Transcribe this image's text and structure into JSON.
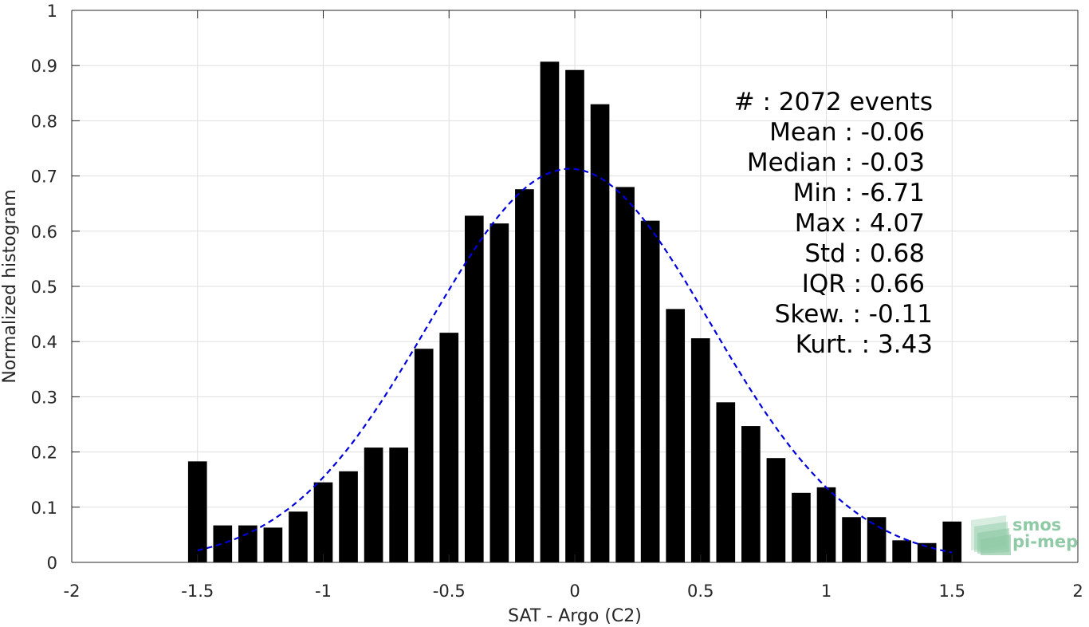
{
  "chart_data": {
    "type": "bar",
    "xlabel": "SAT - Argo (C2)",
    "ylabel": "Normalized histogram",
    "xlim": [
      -2,
      2
    ],
    "ylim": [
      0,
      1
    ],
    "grid": true,
    "x_ticks": [
      -2,
      -1.5,
      -1,
      -0.5,
      0,
      0.5,
      1,
      1.5,
      2
    ],
    "x_tick_labels": [
      "-2",
      "-1.5",
      "-1",
      "-0.5",
      "0",
      "0.5",
      "1",
      "1.5",
      "2"
    ],
    "y_ticks": [
      0,
      0.1,
      0.2,
      0.3,
      0.4,
      0.5,
      0.6,
      0.7,
      0.8,
      0.9,
      1
    ],
    "y_tick_labels": [
      "0",
      "0.1",
      "0.2",
      "0.3",
      "0.4",
      "0.5",
      "0.6",
      "0.7",
      "0.8",
      "0.9",
      "1"
    ],
    "bar_width": 0.075,
    "bar_color": "#000000",
    "bins": [
      {
        "x": -1.5,
        "y": 0.183
      },
      {
        "x": -1.4,
        "y": 0.067
      },
      {
        "x": -1.3,
        "y": 0.067
      },
      {
        "x": -1.2,
        "y": 0.063
      },
      {
        "x": -1.1,
        "y": 0.092
      },
      {
        "x": -1.0,
        "y": 0.145
      },
      {
        "x": -0.9,
        "y": 0.165
      },
      {
        "x": -0.8,
        "y": 0.208
      },
      {
        "x": -0.7,
        "y": 0.208
      },
      {
        "x": -0.6,
        "y": 0.387
      },
      {
        "x": -0.5,
        "y": 0.416
      },
      {
        "x": -0.4,
        "y": 0.628
      },
      {
        "x": -0.3,
        "y": 0.614
      },
      {
        "x": -0.2,
        "y": 0.676
      },
      {
        "x": -0.1,
        "y": 0.907
      },
      {
        "x": 0.0,
        "y": 0.892
      },
      {
        "x": 0.1,
        "y": 0.83
      },
      {
        "x": 0.2,
        "y": 0.68
      },
      {
        "x": 0.3,
        "y": 0.619
      },
      {
        "x": 0.4,
        "y": 0.459
      },
      {
        "x": 0.5,
        "y": 0.406
      },
      {
        "x": 0.6,
        "y": 0.29
      },
      {
        "x": 0.7,
        "y": 0.247
      },
      {
        "x": 0.8,
        "y": 0.189
      },
      {
        "x": 0.9,
        "y": 0.126
      },
      {
        "x": 1.0,
        "y": 0.136
      },
      {
        "x": 1.1,
        "y": 0.082
      },
      {
        "x": 1.2,
        "y": 0.082
      },
      {
        "x": 1.3,
        "y": 0.04
      },
      {
        "x": 1.4,
        "y": 0.035
      },
      {
        "x": 1.5,
        "y": 0.074
      }
    ],
    "fit_curve": {
      "style": "dashed",
      "color": "#0000dd",
      "mean": -0.02,
      "std": 0.56,
      "peak": 0.713,
      "x_range": [
        -1.5,
        1.5
      ]
    },
    "stats": [
      {
        "label": "#  : 2072 events"
      },
      {
        "label": "Mean : -0.06"
      },
      {
        "label": "Median : -0.03"
      },
      {
        "label": "Min : -6.71"
      },
      {
        "label": "Max : 4.07"
      },
      {
        "label": "Std : 0.68"
      },
      {
        "label": "IQR : 0.66"
      },
      {
        "label": "Skew. : -0.11"
      },
      {
        "label": "Kurt. : 3.43"
      }
    ],
    "logo": {
      "line1": "smos",
      "line2": "pi-mep",
      "color": "#8fc9a5"
    }
  }
}
